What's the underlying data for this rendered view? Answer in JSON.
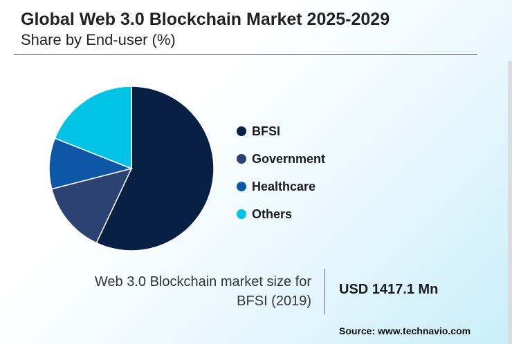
{
  "header": {
    "title": "Global Web 3.0 Blockchain Market 2025-2029",
    "subtitle": "Share by End-user (%)"
  },
  "chart_data": {
    "type": "pie",
    "categories": [
      "BFSI",
      "Government",
      "Healthcare",
      "Others"
    ],
    "values": [
      57,
      14,
      10,
      19
    ],
    "colors": [
      "#0a1f44",
      "#2b4272",
      "#0d57a6",
      "#00c3e6"
    ],
    "legend_position": "right"
  },
  "info": {
    "label_line1": "Web 3.0 Blockchain market size for",
    "label_line2": "BFSI (2019)",
    "value": "USD 1417.1 Mn"
  },
  "source": "Source: www.technavio.com"
}
